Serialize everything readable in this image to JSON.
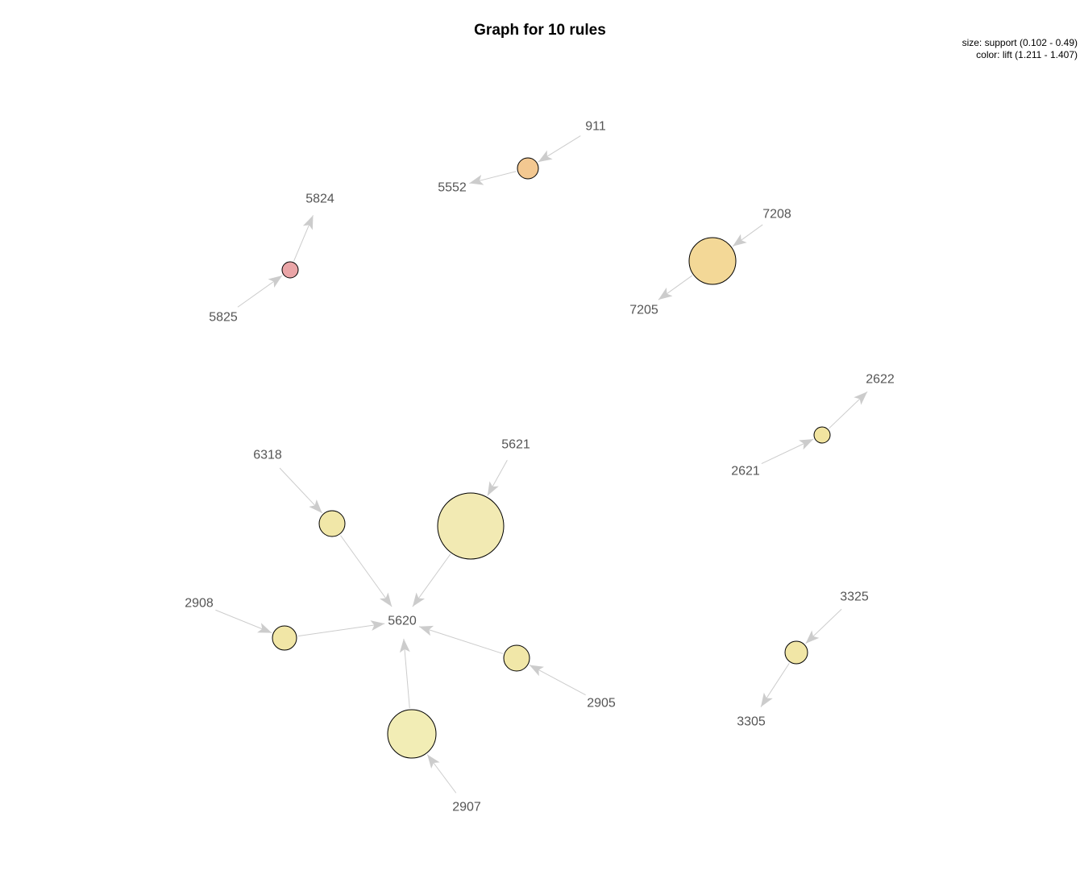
{
  "title": "Graph for 10 rules",
  "legend": {
    "size": "size: support (0.102 - 0.49)",
    "color": "color: lift (1.211 - 1.407)"
  },
  "items": [
    "911",
    "5552",
    "5824",
    "5825",
    "7208",
    "7205",
    "2622",
    "2621",
    "5621",
    "6318",
    "5620",
    "2908",
    "2905",
    "2907",
    "3325",
    "3305"
  ],
  "rules": [
    {
      "lhs": "911",
      "rhs": "5552",
      "color": "#f3c891"
    },
    {
      "lhs": "5825",
      "rhs": "5824",
      "color": "#eaa5a7"
    },
    {
      "lhs": "7208",
      "rhs": "7205",
      "color": "#f3d897"
    },
    {
      "lhs": "2621",
      "rhs": "2622",
      "color": "#f1e4a0"
    },
    {
      "lhs": "5621",
      "rhs": "5620",
      "color": "#f2eab3"
    },
    {
      "lhs": "6318",
      "rhs": "5620",
      "color": "#f1e7a8"
    },
    {
      "lhs": "2908",
      "rhs": "5620",
      "color": "#f1e6a6"
    },
    {
      "lhs": "2905",
      "rhs": "5620",
      "color": "#f1e7a8"
    },
    {
      "lhs": "2907",
      "rhs": "5620",
      "color": "#f2edb5"
    },
    {
      "lhs": "3325",
      "rhs": "3305",
      "color": "#f1e6a6"
    }
  ]
}
